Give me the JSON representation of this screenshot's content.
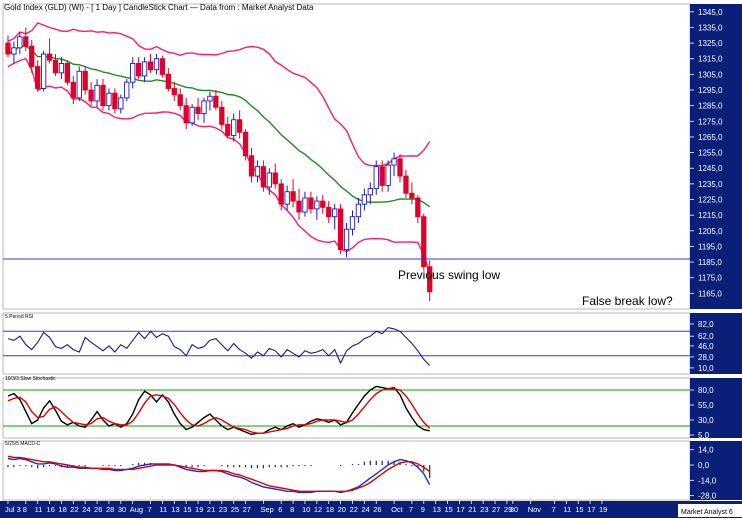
{
  "title": "Gold Index (GLD) (WI) - [ 1 Day ] CandleStick Chart — Data from : Market Analyst Data",
  "watermark": "Market Analyst 6",
  "colors": {
    "up": "#1a1ac8",
    "down": "#e0002a",
    "bollinger": "#ff1a6e",
    "ma": "#1f8a1f",
    "hline": "#3a3ad0",
    "rsi": "#1a1a8a",
    "stoch_k": "#000000",
    "stoch_d": "#e00000",
    "stoch_level": "#00aa00",
    "macd": "#2030c0",
    "signal": "#e00000",
    "axis_bg": "#0a1f78"
  },
  "chart_data": [
    {
      "type": "candlestick",
      "title": "Gold Index (GLD) (WI) - [ 1 Day ] CandleStick Chart — Data from : Market Analyst Data",
      "ylim": [
        1155,
        1350
      ],
      "yticks": [
        1345,
        1335,
        1325,
        1315,
        1305,
        1295,
        1285,
        1275,
        1265,
        1255,
        1245,
        1235,
        1225,
        1215,
        1205,
        1195,
        1185,
        1175,
        1165
      ],
      "ytick_labels": [
        "1345,0",
        "1335,0",
        "1325,0",
        "1315,0",
        "1305,0",
        "1295,0",
        "1285,0",
        "1275,0",
        "1265,0",
        "1255,0",
        "1245,0",
        "1235,0",
        "1225,0",
        "1215,0",
        "1205,0",
        "1195,0",
        "1185,0",
        "1175,0",
        "1165,0"
      ],
      "candles": [
        [
          1325,
          1330,
          1316,
          1318
        ],
        [
          1318,
          1326,
          1312,
          1322
        ],
        [
          1322,
          1332,
          1318,
          1329
        ],
        [
          1329,
          1335,
          1320,
          1323
        ],
        [
          1323,
          1327,
          1306,
          1310
        ],
        [
          1310,
          1314,
          1294,
          1296
        ],
        [
          1296,
          1320,
          1294,
          1318
        ],
        [
          1318,
          1328,
          1312,
          1314
        ],
        [
          1314,
          1318,
          1304,
          1306
        ],
        [
          1306,
          1316,
          1302,
          1312
        ],
        [
          1312,
          1314,
          1298,
          1300
        ],
        [
          1300,
          1304,
          1286,
          1290
        ],
        [
          1290,
          1310,
          1288,
          1307
        ],
        [
          1307,
          1310,
          1292,
          1295
        ],
        [
          1295,
          1300,
          1285,
          1288
        ],
        [
          1288,
          1302,
          1284,
          1298
        ],
        [
          1298,
          1302,
          1282,
          1285
        ],
        [
          1285,
          1296,
          1282,
          1293
        ],
        [
          1293,
          1296,
          1280,
          1283
        ],
        [
          1283,
          1292,
          1280,
          1290
        ],
        [
          1290,
          1302,
          1288,
          1300
        ],
        [
          1300,
          1316,
          1296,
          1312
        ],
        [
          1312,
          1316,
          1302,
          1304
        ],
        [
          1304,
          1316,
          1300,
          1313
        ],
        [
          1313,
          1318,
          1306,
          1308
        ],
        [
          1308,
          1318,
          1305,
          1315
        ],
        [
          1315,
          1317,
          1303,
          1305
        ],
        [
          1305,
          1309,
          1294,
          1296
        ],
        [
          1296,
          1300,
          1288,
          1292
        ],
        [
          1292,
          1296,
          1282,
          1285
        ],
        [
          1285,
          1290,
          1270,
          1274
        ],
        [
          1274,
          1286,
          1272,
          1284
        ],
        [
          1284,
          1290,
          1276,
          1280
        ],
        [
          1280,
          1290,
          1274,
          1288
        ],
        [
          1288,
          1294,
          1282,
          1291
        ],
        [
          1291,
          1295,
          1282,
          1284
        ],
        [
          1284,
          1288,
          1270,
          1273
        ],
        [
          1273,
          1278,
          1264,
          1266
        ],
        [
          1266,
          1280,
          1262,
          1276
        ],
        [
          1276,
          1282,
          1264,
          1268
        ],
        [
          1268,
          1270,
          1250,
          1253
        ],
        [
          1253,
          1258,
          1236,
          1240
        ],
        [
          1240,
          1250,
          1236,
          1246
        ],
        [
          1246,
          1250,
          1230,
          1233
        ],
        [
          1233,
          1245,
          1228,
          1242
        ],
        [
          1242,
          1248,
          1232,
          1235
        ],
        [
          1235,
          1238,
          1218,
          1222
        ],
        [
          1222,
          1234,
          1218,
          1230
        ],
        [
          1230,
          1238,
          1220,
          1224
        ],
        [
          1224,
          1232,
          1212,
          1217
        ],
        [
          1217,
          1230,
          1214,
          1226
        ],
        [
          1226,
          1230,
          1216,
          1219
        ],
        [
          1219,
          1227,
          1212,
          1224
        ],
        [
          1224,
          1228,
          1216,
          1220
        ],
        [
          1220,
          1224,
          1210,
          1214
        ],
        [
          1214,
          1222,
          1206,
          1219
        ],
        [
          1219,
          1222,
          1190,
          1193
        ],
        [
          1193,
          1210,
          1188,
          1206
        ],
        [
          1206,
          1218,
          1202,
          1214
        ],
        [
          1214,
          1226,
          1210,
          1222
        ],
        [
          1222,
          1232,
          1218,
          1228
        ],
        [
          1228,
          1236,
          1222,
          1232
        ],
        [
          1232,
          1250,
          1228,
          1246
        ],
        [
          1246,
          1250,
          1230,
          1234
        ],
        [
          1234,
          1250,
          1230,
          1247
        ],
        [
          1247,
          1255,
          1240,
          1251
        ],
        [
          1251,
          1254,
          1236,
          1240
        ],
        [
          1240,
          1244,
          1226,
          1229
        ],
        [
          1229,
          1236,
          1222,
          1226
        ],
        [
          1226,
          1228,
          1210,
          1214
        ],
        [
          1214,
          1216,
          1180,
          1182
        ],
        [
          1182,
          1186,
          1160,
          1166
        ]
      ]
    },
    {
      "type": "line",
      "title": "5 Period RSI",
      "ylim": [
        0,
        100
      ],
      "yticks": [
        82,
        62,
        46,
        28,
        10
      ],
      "ytick_labels": [
        "82,0",
        "62,0",
        "46,0",
        "28,0",
        "10,0"
      ],
      "levels": [
        70,
        30
      ],
      "series": [
        {
          "values": [
            58,
            55,
            62,
            48,
            40,
            52,
            68,
            60,
            45,
            42,
            48,
            40,
            36,
            60,
            52,
            45,
            38,
            46,
            36,
            48,
            42,
            55,
            68,
            58,
            70,
            60,
            66,
            62,
            45,
            40,
            30,
            48,
            42,
            45,
            55,
            58,
            48,
            38,
            50,
            40,
            34,
            26,
            36,
            30,
            42,
            38,
            28,
            40,
            34,
            28,
            38,
            34,
            36,
            40,
            30,
            40,
            18,
            38,
            46,
            50,
            58,
            62,
            70,
            66,
            76,
            74,
            70,
            60,
            50,
            38,
            24,
            14
          ]
        }
      ]
    },
    {
      "type": "line",
      "title": "10/3/3 Slow Stochastic",
      "ylim": [
        0,
        100
      ],
      "yticks": [
        80,
        55,
        30,
        5
      ],
      "ytick_labels": [
        "80,0",
        "55,0",
        "30,0",
        "5,0"
      ],
      "levels": [
        80,
        20
      ],
      "series": [
        {
          "values": [
            70,
            74,
            64,
            44,
            24,
            30,
            50,
            62,
            46,
            28,
            22,
            26,
            20,
            18,
            30,
            44,
            30,
            20,
            24,
            18,
            24,
            40,
            64,
            78,
            72,
            60,
            72,
            60,
            40,
            24,
            14,
            18,
            26,
            34,
            40,
            30,
            20,
            14,
            18,
            14,
            10,
            6,
            8,
            8,
            14,
            18,
            14,
            20,
            24,
            18,
            22,
            28,
            32,
            30,
            26,
            30,
            22,
            26,
            42,
            56,
            70,
            80,
            86,
            84,
            82,
            84,
            72,
            50,
            34,
            20,
            14,
            12
          ]
        },
        {
          "values": [
            62,
            66,
            68,
            60,
            44,
            34,
            36,
            48,
            52,
            44,
            34,
            26,
            24,
            22,
            24,
            32,
            34,
            28,
            24,
            22,
            22,
            28,
            42,
            58,
            70,
            72,
            70,
            66,
            56,
            42,
            30,
            22,
            20,
            24,
            30,
            34,
            30,
            24,
            18,
            16,
            14,
            10,
            8,
            8,
            10,
            12,
            14,
            16,
            20,
            22,
            22,
            24,
            28,
            30,
            30,
            30,
            28,
            26,
            30,
            40,
            52,
            64,
            74,
            80,
            82,
            82,
            80,
            70,
            56,
            40,
            26,
            16
          ]
        }
      ]
    },
    {
      "type": "line",
      "title": "5/25/5 MACD-C",
      "ylim": [
        -32,
        22
      ],
      "yticks": [
        14,
        0,
        -14,
        -28
      ],
      "ytick_labels": [
        "14,0",
        "0,0",
        "-14,0",
        "-28,0"
      ],
      "series": [
        {
          "values": [
            6,
            5,
            6,
            5,
            3,
            1,
            1,
            2,
            1,
            -1,
            -2,
            -2,
            -3,
            -3,
            -3,
            -3,
            -4,
            -4,
            -5,
            -5,
            -4,
            -3,
            -1,
            0,
            1,
            1,
            1,
            1,
            0,
            -2,
            -4,
            -5,
            -6,
            -6,
            -5,
            -5,
            -6,
            -8,
            -10,
            -11,
            -13,
            -16,
            -18,
            -20,
            -21,
            -22,
            -23,
            -24,
            -24,
            -25,
            -25,
            -25,
            -24,
            -24,
            -24,
            -24,
            -25,
            -24,
            -22,
            -20,
            -16,
            -12,
            -8,
            -4,
            0,
            3,
            5,
            4,
            2,
            -2,
            -8,
            -18
          ]
        },
        {
          "values": [
            8,
            7,
            7,
            6,
            5,
            4,
            3,
            3,
            2,
            1,
            0,
            -1,
            -2,
            -2,
            -3,
            -3,
            -3,
            -3,
            -4,
            -4,
            -4,
            -4,
            -3,
            -2,
            -1,
            0,
            0,
            0,
            0,
            -1,
            -2,
            -3,
            -4,
            -5,
            -5,
            -5,
            -5,
            -6,
            -8,
            -9,
            -11,
            -13,
            -15,
            -17,
            -19,
            -20,
            -21,
            -22,
            -23,
            -24,
            -24,
            -24,
            -24,
            -24,
            -24,
            -24,
            -24,
            -24,
            -23,
            -21,
            -19,
            -16,
            -12,
            -8,
            -4,
            -1,
            2,
            3,
            3,
            1,
            -2,
            -6
          ]
        }
      ],
      "histogram": [
        -2,
        -2,
        -1,
        -1,
        -2,
        -3,
        -2,
        -1,
        -1,
        -2,
        -2,
        -1,
        -1,
        -1,
        0,
        0,
        -1,
        -1,
        -1,
        -1,
        0,
        1,
        2,
        2,
        2,
        1,
        1,
        1,
        0,
        -1,
        -2,
        -2,
        -2,
        -1,
        0,
        0,
        -1,
        -2,
        -2,
        -2,
        -2,
        -3,
        -3,
        -3,
        -2,
        -2,
        -2,
        -2,
        -1,
        -1,
        -1,
        -1,
        0,
        0,
        0,
        0,
        -1,
        0,
        1,
        1,
        3,
        4,
        4,
        4,
        4,
        4,
        3,
        1,
        -1,
        -3,
        -6,
        -12
      ]
    }
  ],
  "x_axis": {
    "labels": [
      {
        "text": "Jul 3",
        "slot": 0
      },
      {
        "text": "8",
        "slot": 3
      },
      {
        "text": "11",
        "slot": 5
      },
      {
        "text": "16",
        "slot": 7
      },
      {
        "text": "18",
        "slot": 9
      },
      {
        "text": "22",
        "slot": 11
      },
      {
        "text": "24",
        "slot": 13
      },
      {
        "text": "26",
        "slot": 15
      },
      {
        "text": "28",
        "slot": 17
      },
      {
        "text": "30",
        "slot": 19
      },
      {
        "text": "Aug",
        "slot": 21
      },
      {
        "text": "7",
        "slot": 24
      },
      {
        "text": "11",
        "slot": 26
      },
      {
        "text": "13",
        "slot": 28
      },
      {
        "text": "15",
        "slot": 30
      },
      {
        "text": "19",
        "slot": 32
      },
      {
        "text": "21",
        "slot": 34
      },
      {
        "text": "23",
        "slot": 36
      },
      {
        "text": "25",
        "slot": 38
      },
      {
        "text": "27",
        "slot": 40
      },
      {
        "text": "Sep",
        "slot": 43
      },
      {
        "text": "6",
        "slot": 46
      },
      {
        "text": "8",
        "slot": 48
      },
      {
        "text": "10",
        "slot": 50
      },
      {
        "text": "12",
        "slot": 52
      },
      {
        "text": "18",
        "slot": 54
      },
      {
        "text": "20",
        "slot": 56
      },
      {
        "text": "22",
        "slot": 58
      },
      {
        "text": "24",
        "slot": 60
      },
      {
        "text": "26",
        "slot": 62
      },
      {
        "text": "Oct",
        "slot": 65
      },
      {
        "text": "7",
        "slot": 68
      },
      {
        "text": "9",
        "slot": 70
      },
      {
        "text": "13",
        "slot": 72
      },
      {
        "text": "15",
        "slot": 74
      },
      {
        "text": "17",
        "slot": 76
      },
      {
        "text": "21",
        "slot": 78
      },
      {
        "text": "23",
        "slot": 80
      },
      {
        "text": "27",
        "slot": 82
      },
      {
        "text": "29",
        "slot": 84
      },
      {
        "text": "30",
        "slot": 85
      },
      {
        "text": "Nov",
        "slot": 88
      },
      {
        "text": "7",
        "slot": 92
      },
      {
        "text": "11",
        "slot": 94
      },
      {
        "text": "15",
        "slot": 96
      },
      {
        "text": "17",
        "slot": 98
      },
      {
        "text": "19",
        "slot": 100
      }
    ]
  },
  "annotations": {
    "previous_swing_low": {
      "text": "Previous swing low",
      "price": 1187
    },
    "false_break_low": {
      "text": "False break low?"
    }
  }
}
